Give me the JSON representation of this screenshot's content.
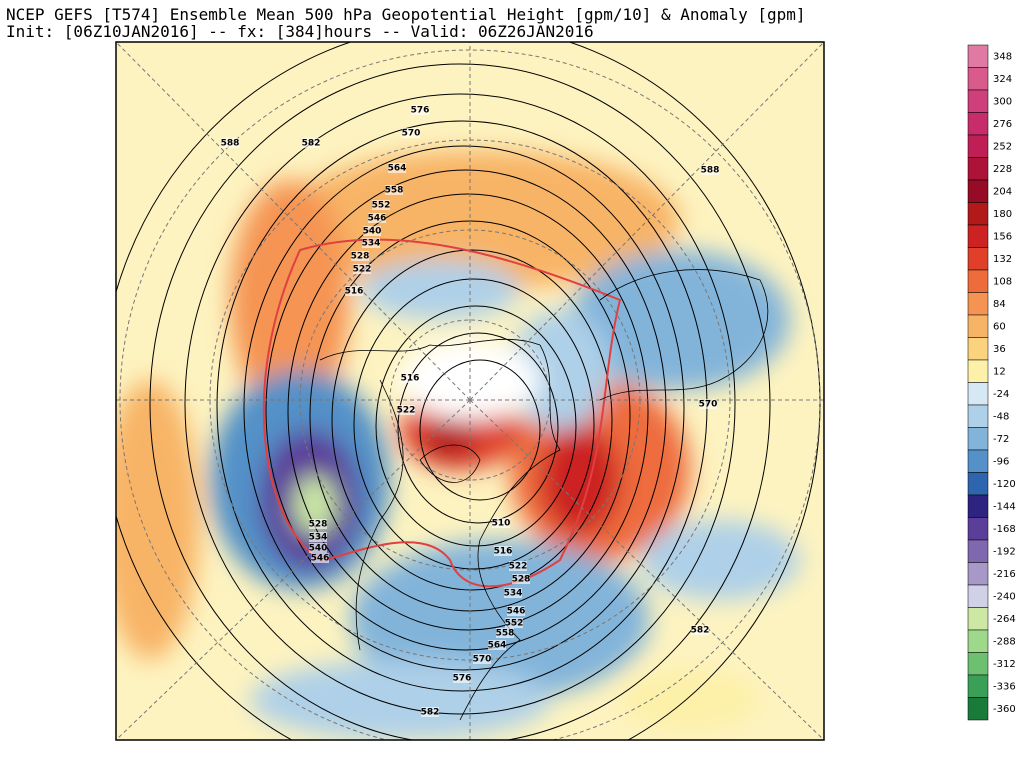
{
  "title": "NCEP GEFS [T574] Ensemble Mean 500 hPa Geopotential Height [gpm/10] & Anomaly [gpm]",
  "subtitle": "Init: [06Z10JAN2016] -- fx: [384]hours -- Valid: 06Z26JAN2016",
  "colorbar": {
    "labels": [
      "348",
      "324",
      "300",
      "276",
      "252",
      "228",
      "204",
      "180",
      "156",
      "132",
      "108",
      "84",
      "60",
      "36",
      "12",
      "-24",
      "-48",
      "-72",
      "-96",
      "-120",
      "-144",
      "-168",
      "-192",
      "-216",
      "-240",
      "-264",
      "-288",
      "-312",
      "-336",
      "-360"
    ],
    "colors": [
      "#e07aa2",
      "#d85b8c",
      "#cf3f7b",
      "#c72d6b",
      "#bf1f55",
      "#ad1238",
      "#960b25",
      "#b21a1a",
      "#cc2222",
      "#e0402a",
      "#ee6c3c",
      "#f59452",
      "#f8b466",
      "#fbd37e",
      "#fdf0a8",
      "#d6e8f3",
      "#aed0e8",
      "#82b4da",
      "#5391c8",
      "#2d65ae",
      "#2e2380",
      "#5b3e9a",
      "#8068b0",
      "#a898c8",
      "#d0d0e6",
      "#cce8a4",
      "#9ed88a",
      "#6cc070",
      "#3aa058",
      "#1a7a3a"
    ]
  },
  "contour_labels": [
    "588",
    "582",
    "576",
    "570",
    "564",
    "558",
    "552",
    "546",
    "540",
    "534",
    "528",
    "522",
    "516",
    "516",
    "522",
    "588",
    "570",
    "510",
    "516",
    "522",
    "528",
    "534",
    "546",
    "552",
    "558",
    "564",
    "570",
    "576",
    "582",
    "582",
    "528",
    "534",
    "540",
    "546"
  ]
}
